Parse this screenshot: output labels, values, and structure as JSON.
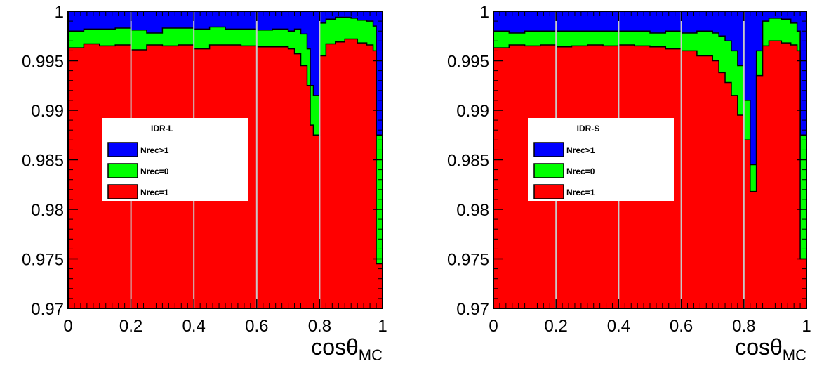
{
  "chart_data": [
    {
      "type": "area",
      "title": "IDR-L",
      "xlabel": "cosθMC",
      "ylabel": "",
      "xlim": [
        0,
        1
      ],
      "ylim": [
        0.97,
        1
      ],
      "x_ticks": [
        "0",
        "0.2",
        "0.4",
        "0.6",
        "0.8",
        "1"
      ],
      "y_ticks": [
        "0.97",
        "0.975",
        "0.98",
        "0.985",
        "0.99",
        "0.995",
        "1"
      ],
      "vertical_reference_lines": [
        0.2,
        0.4,
        0.6,
        0.8
      ],
      "stacking": "cumulative fraction",
      "legend_position": "center-left",
      "series": [
        {
          "name": "Nrec>1",
          "color": "#0000ff"
        },
        {
          "name": "Nrec=0",
          "color": "#00ff00"
        },
        {
          "name": "Nrec=1",
          "color": "#ff0000"
        }
      ],
      "x": [
        0.0,
        0.05,
        0.1,
        0.15,
        0.2,
        0.25,
        0.3,
        0.35,
        0.4,
        0.45,
        0.5,
        0.55,
        0.6,
        0.65,
        0.7,
        0.72,
        0.74,
        0.76,
        0.77,
        0.78,
        0.8,
        0.82,
        0.85,
        0.88,
        0.9,
        0.92,
        0.95,
        0.97,
        0.98,
        1.0
      ],
      "nrec1_cum": [
        0.9963,
        0.9967,
        0.9965,
        0.9966,
        0.9961,
        0.9966,
        0.9965,
        0.9966,
        0.9962,
        0.9966,
        0.9966,
        0.9965,
        0.9964,
        0.9964,
        0.9962,
        0.9957,
        0.9945,
        0.9925,
        0.9885,
        0.9875,
        0.9955,
        0.9967,
        0.9969,
        0.9972,
        0.9972,
        0.9968,
        0.9966,
        0.996,
        0.9745,
        0.9745
      ],
      "nrec0_cum": [
        0.998,
        0.9982,
        0.9982,
        0.9983,
        0.9981,
        0.9978,
        0.9983,
        0.9983,
        0.9982,
        0.9984,
        0.9982,
        0.9982,
        0.9981,
        0.9982,
        0.998,
        0.9982,
        0.9977,
        0.9962,
        0.9925,
        0.9915,
        0.9988,
        0.9992,
        0.9994,
        0.9994,
        0.9993,
        0.9991,
        0.999,
        0.9985,
        0.9875,
        0.9875
      ]
    },
    {
      "type": "area",
      "title": "IDR-S",
      "xlabel": "cosθMC",
      "ylabel": "",
      "xlim": [
        0,
        1
      ],
      "ylim": [
        0.97,
        1
      ],
      "x_ticks": [
        "0",
        "0.2",
        "0.4",
        "0.6",
        "0.8",
        "1"
      ],
      "y_ticks": [
        "0.97",
        "0.975",
        "0.98",
        "0.985",
        "0.99",
        "0.995",
        "1"
      ],
      "vertical_reference_lines": [
        0.2,
        0.4,
        0.6,
        0.8
      ],
      "stacking": "cumulative fraction",
      "legend_position": "center-left",
      "series": [
        {
          "name": "Nrec>1",
          "color": "#0000ff"
        },
        {
          "name": "Nrec=0",
          "color": "#00ff00"
        },
        {
          "name": "Nrec=1",
          "color": "#ff0000"
        }
      ],
      "x": [
        0.0,
        0.05,
        0.1,
        0.15,
        0.2,
        0.25,
        0.3,
        0.35,
        0.4,
        0.45,
        0.5,
        0.55,
        0.6,
        0.65,
        0.7,
        0.72,
        0.74,
        0.76,
        0.78,
        0.8,
        0.82,
        0.84,
        0.86,
        0.88,
        0.9,
        0.92,
        0.95,
        0.97,
        0.98,
        1.0
      ],
      "nrec1_cum": [
        0.9963,
        0.9966,
        0.9965,
        0.9966,
        0.9964,
        0.9965,
        0.9966,
        0.9965,
        0.9966,
        0.9965,
        0.9964,
        0.9962,
        0.996,
        0.9955,
        0.995,
        0.9938,
        0.9928,
        0.9915,
        0.9895,
        0.987,
        0.9818,
        0.9935,
        0.9965,
        0.997,
        0.997,
        0.9968,
        0.9966,
        0.996,
        0.975,
        0.975
      ],
      "nrec0_cum": [
        0.998,
        0.9978,
        0.998,
        0.998,
        0.998,
        0.998,
        0.998,
        0.998,
        0.998,
        0.998,
        0.9978,
        0.998,
        0.9978,
        0.998,
        0.9978,
        0.9975,
        0.997,
        0.996,
        0.9945,
        0.991,
        0.9845,
        0.996,
        0.999,
        0.9993,
        0.9993,
        0.9992,
        0.9988,
        0.998,
        0.9875,
        0.9875
      ]
    }
  ]
}
